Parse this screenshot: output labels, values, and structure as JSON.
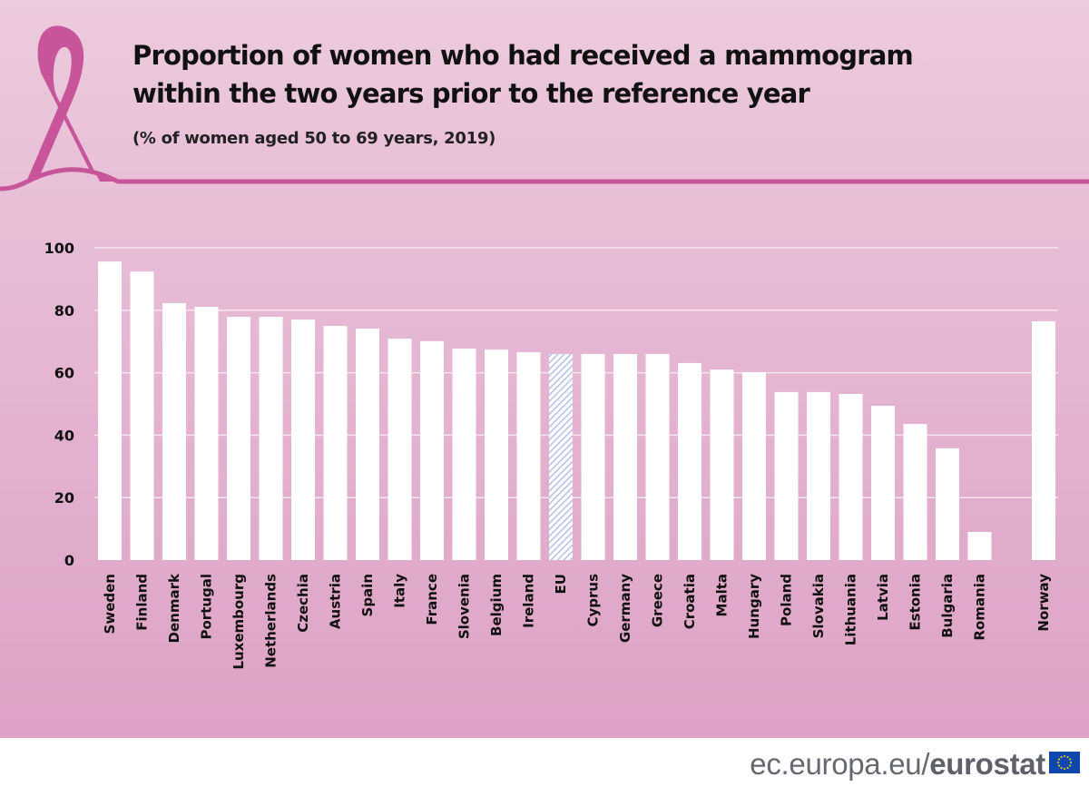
{
  "title": "Proportion of women who had received a mammogram within the two years prior to the reference year",
  "title_line1": "Proportion of women who had received a mammogram",
  "title_line2": "within the two years prior to the reference year",
  "subtitle": "(% of women aged 50 to 69 years, 2019)",
  "footer": {
    "site": "ec.europa.eu/",
    "brand": "eurostat"
  },
  "colors": {
    "bar": "#ffffff",
    "eu_bar_hatch": "#a9b4e8",
    "ribbon": "#c8559a",
    "background": "#e6b8d4"
  },
  "chart_data": {
    "type": "bar",
    "title": "Proportion of women who had received a mammogram within the two years prior to the reference year",
    "subtitle": "(% of women aged 50 to 69 years, 2019)",
    "categories": [
      "Sweden",
      "Finland",
      "Denmark",
      "Portugal",
      "Luxembourg",
      "Netherlands",
      "Czechia",
      "Austria",
      "Spain",
      "Italy",
      "France",
      "Slovenia",
      "Belgium",
      "Ireland",
      "EU",
      "Cyprus",
      "Germany",
      "Greece",
      "Croatia",
      "Malta",
      "Hungary",
      "Poland",
      "Slovakia",
      "Lithuania",
      "Latvia",
      "Estonia",
      "Bulgaria",
      "Romania",
      "Norway"
    ],
    "values": [
      95.6,
      92.4,
      82.3,
      81.1,
      77.9,
      77.9,
      77.0,
      75.0,
      74.1,
      70.9,
      70.1,
      67.7,
      67.4,
      66.6,
      66.0,
      66.0,
      66.0,
      66.0,
      63.1,
      61.0,
      60.2,
      53.8,
      53.8,
      53.2,
      49.4,
      43.6,
      35.8,
      9.0,
      76.5
    ],
    "highlight": "EU",
    "ylim": [
      0,
      100
    ],
    "yticks": [
      0,
      20,
      40,
      60,
      80,
      100
    ],
    "grid": true,
    "xlabel": "",
    "ylabel": ""
  }
}
